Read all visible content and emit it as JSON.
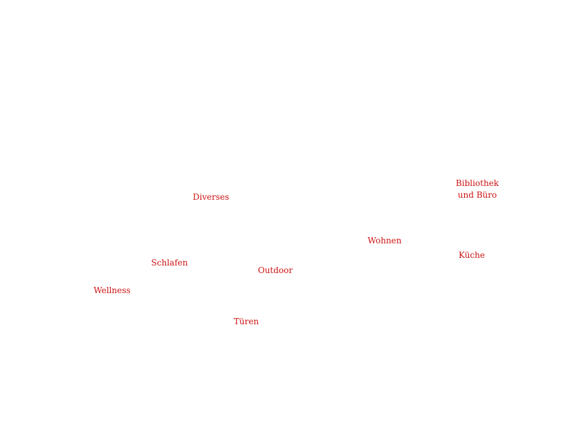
{
  "accent_color": "#cc1111",
  "nav": {
    "bibliothek": {
      "line1": "Bibliothek",
      "line2": "und Büro"
    },
    "diverses": "Diverses",
    "wohnen": "Wohnen",
    "kueche": "Küche",
    "schlafen": "Schlafen",
    "outdoor": "Outdoor",
    "wellness": "Wellness",
    "tueren": "Türen"
  }
}
